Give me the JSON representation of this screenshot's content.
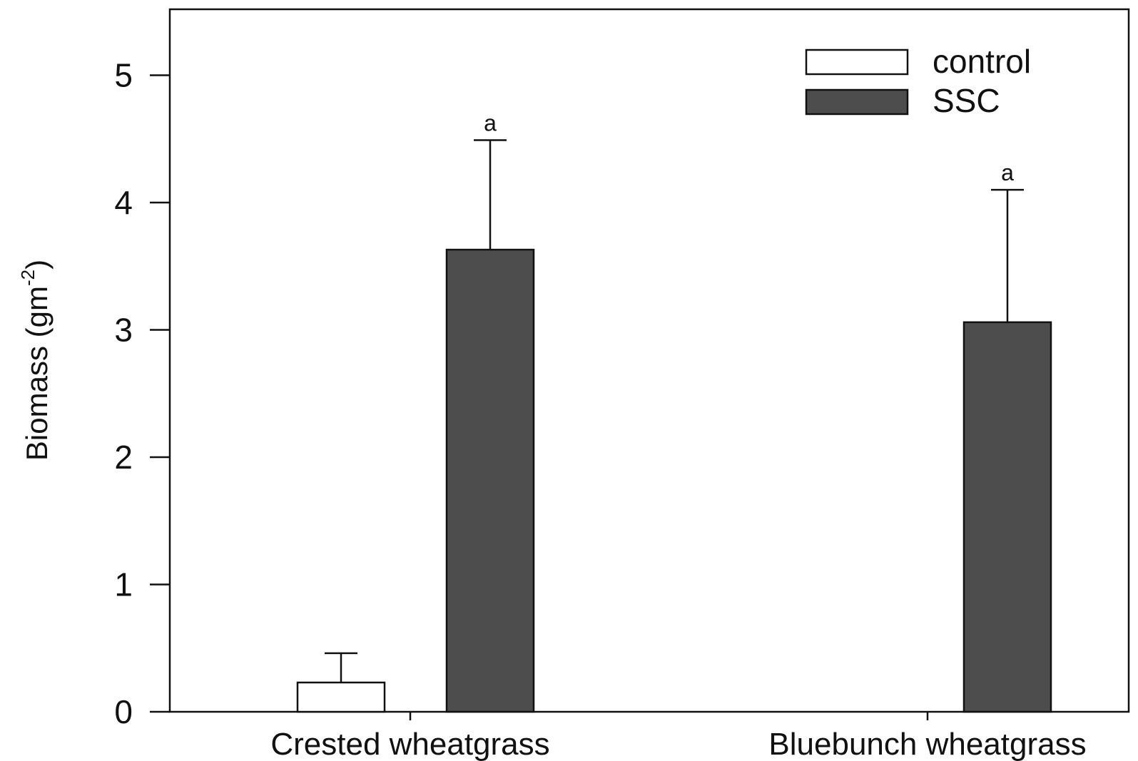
{
  "chart_data": {
    "type": "bar",
    "title": "",
    "xlabel": "",
    "ylabel": "Biomass (gm",
    "ylabel_sup": "-2",
    "ylabel_close": ")",
    "ylim": [
      0,
      5.5
    ],
    "yticks": [
      0,
      1,
      2,
      3,
      4,
      5
    ],
    "ytick_labels": [
      "0",
      "1",
      "2",
      "3",
      "4",
      "5"
    ],
    "categories": [
      "Crested wheatgrass",
      "Bluebunch wheatgrass"
    ],
    "series": [
      {
        "name": "control",
        "color": "#ffffff",
        "values": [
          0.23,
          null
        ],
        "errors": [
          0.23,
          null
        ],
        "labels": [
          "",
          ""
        ]
      },
      {
        "name": "SSC",
        "color": "#4d4d4d",
        "values": [
          3.63,
          3.06
        ],
        "errors": [
          0.86,
          1.04
        ],
        "labels": [
          "a",
          "a"
        ]
      }
    ],
    "grid": false,
    "legend_position": "top-right"
  }
}
